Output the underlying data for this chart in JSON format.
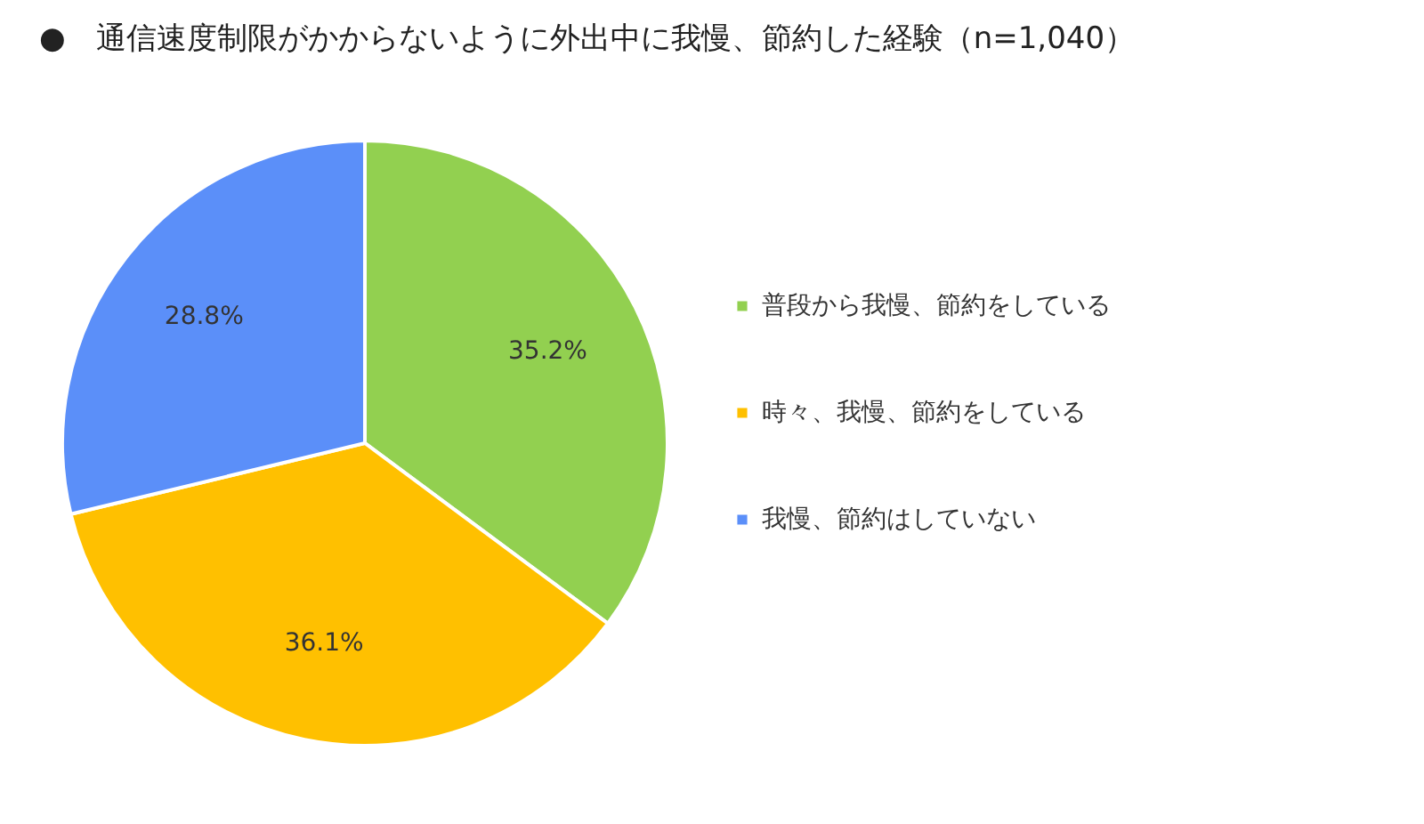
{
  "chart_data": {
    "type": "pie",
    "title": "●　通信速度制限がかからないように外出中に我慢、節約した経験（n=1,040）",
    "categories": [
      "普段から我慢、節約をしている",
      "時々、我慢、節約をしている",
      "我慢、節約はしていない"
    ],
    "values": [
      35.2,
      36.1,
      28.8
    ],
    "colors": [
      "#92d050",
      "#ffc000",
      "#5b8ff9"
    ],
    "value_labels": [
      "35.2%",
      "36.1%",
      "28.8%"
    ],
    "legend": "right"
  }
}
